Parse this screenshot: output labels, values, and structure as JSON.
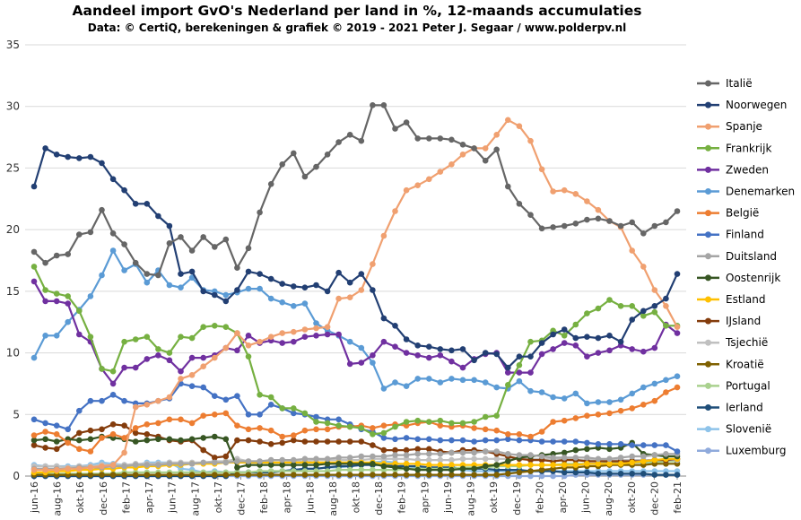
{
  "chart_data": {
    "type": "line",
    "title": "Aandeel import GvO's Nederland per land in %, 12-maands accumulaties",
    "subtitle": "Data: © CertiQ, berekeningen & grafiek © 2019 - 2021 Peter J. Segaar / www.polderpv.nl",
    "ylim": [
      0,
      35
    ],
    "yticks": [
      0,
      5,
      10,
      15,
      20,
      25,
      30,
      35
    ],
    "grid": "horizontal",
    "legend_position": "right",
    "x_tick_labels": [
      "jun-16",
      "aug-16",
      "okt-16",
      "dec-16",
      "feb-17",
      "apr-17",
      "jun-17",
      "aug-17",
      "okt-17",
      "dec-17",
      "feb-18",
      "apr-18",
      "jun-18",
      "aug-18",
      "okt-18",
      "dec-18",
      "feb-19",
      "apr-19",
      "jun-19",
      "aug-19",
      "okt-19",
      "dec-19",
      "feb-20",
      "apr-20",
      "jun-20",
      "aug-20",
      "okt-20",
      "dec-20",
      "feb-21"
    ],
    "series": [
      {
        "name": "Italië",
        "color": "#666666",
        "values": [
          18.2,
          17.3,
          17.9,
          18.0,
          19.6,
          19.8,
          21.6,
          19.7,
          18.8,
          17.3,
          16.4,
          16.3,
          18.9,
          19.4,
          18.3,
          19.4,
          18.6,
          19.2,
          16.9,
          18.5,
          21.4,
          23.7,
          25.3,
          26.2,
          24.3,
          25.1,
          26.1,
          27.1,
          27.7,
          27.2,
          30.1,
          30.1,
          28.2,
          28.7,
          27.4,
          27.4,
          27.4,
          27.3,
          26.9,
          26.6,
          25.6,
          26.5,
          23.5,
          22.1,
          21.2,
          20.1,
          20.2,
          20.3,
          20.5,
          20.8,
          20.9,
          20.7,
          20.3,
          20.6,
          19.7,
          20.3,
          20.6,
          21.5
        ]
      },
      {
        "name": "Noorwegen",
        "color": "#223f73",
        "values": [
          23.5,
          26.6,
          26.1,
          25.9,
          25.8,
          25.9,
          25.4,
          24.1,
          23.2,
          22.1,
          22.1,
          21.1,
          20.3,
          16.4,
          16.6,
          15.0,
          14.7,
          14.2,
          15.1,
          16.6,
          16.4,
          16.0,
          15.6,
          15.4,
          15.3,
          15.5,
          15.0,
          16.5,
          15.7,
          16.4,
          15.1,
          12.8,
          12.2,
          11.1,
          10.6,
          10.5,
          10.3,
          10.2,
          10.3,
          9.4,
          10.0,
          9.9,
          8.8,
          9.7,
          9.7,
          10.8,
          11.5,
          11.9,
          11.2,
          11.3,
          11.2,
          11.4,
          10.9,
          12.7,
          13.4,
          13.8,
          14.4,
          16.4
        ]
      },
      {
        "name": "Spanje",
        "color": "#f0a070",
        "values": [
          0.5,
          0.5,
          0.5,
          0.6,
          0.6,
          0.7,
          0.8,
          0.9,
          1.9,
          5.6,
          5.8,
          6.1,
          6.4,
          7.9,
          8.2,
          8.9,
          9.6,
          10.4,
          11.6,
          10.6,
          10.9,
          11.3,
          11.6,
          11.7,
          11.9,
          12.0,
          12.1,
          14.4,
          14.5,
          15.1,
          17.2,
          19.5,
          21.5,
          23.2,
          23.6,
          24.1,
          24.7,
          25.3,
          26.1,
          26.6,
          26.6,
          27.7,
          28.9,
          28.4,
          27.2,
          24.9,
          23.1,
          23.2,
          22.9,
          22.3,
          21.6,
          20.7,
          20.2,
          18.3,
          17.0,
          15.1,
          13.8,
          12.1
        ]
      },
      {
        "name": "Frankrijk",
        "color": "#76b041",
        "values": [
          17.0,
          15.1,
          14.8,
          14.6,
          13.4,
          11.3,
          8.7,
          8.5,
          10.9,
          11.1,
          11.3,
          10.3,
          10.0,
          11.3,
          11.2,
          12.1,
          12.2,
          12.1,
          11.6,
          9.7,
          6.6,
          6.4,
          5.5,
          5.5,
          5.1,
          4.4,
          4.3,
          4.1,
          4.0,
          3.9,
          3.4,
          3.5,
          4.0,
          4.4,
          4.5,
          4.4,
          4.5,
          4.3,
          4.3,
          4.4,
          4.8,
          4.9,
          7.4,
          9.0,
          10.9,
          11.0,
          11.8,
          11.4,
          12.3,
          13.2,
          13.6,
          14.3,
          13.8,
          13.8,
          13.0,
          13.3,
          12.2,
          12.2
        ]
      },
      {
        "name": "Zweden",
        "color": "#7030a0",
        "values": [
          15.8,
          14.2,
          14.2,
          14.0,
          11.5,
          10.9,
          8.7,
          7.5,
          8.8,
          8.8,
          9.5,
          9.8,
          9.4,
          8.5,
          9.6,
          9.6,
          9.8,
          10.4,
          10.2,
          11.4,
          10.8,
          11.0,
          10.8,
          10.9,
          11.3,
          11.4,
          11.5,
          11.5,
          9.1,
          9.2,
          9.8,
          10.9,
          10.5,
          10.0,
          9.8,
          9.6,
          9.8,
          9.3,
          8.8,
          9.5,
          9.9,
          10.0,
          8.4,
          8.4,
          8.4,
          9.9,
          10.3,
          10.8,
          10.6,
          9.7,
          10.0,
          10.2,
          10.6,
          10.3,
          10.1,
          10.4,
          12.3,
          11.6
        ]
      },
      {
        "name": "Denemarken",
        "color": "#5b9bd5",
        "values": [
          9.6,
          11.4,
          11.4,
          12.5,
          13.5,
          14.6,
          16.3,
          18.3,
          16.7,
          17.2,
          15.7,
          16.7,
          15.5,
          15.3,
          16.1,
          15.1,
          15.0,
          14.7,
          14.9,
          15.2,
          15.2,
          14.4,
          14.1,
          13.8,
          14.0,
          12.4,
          11.8,
          11.4,
          10.9,
          10.4,
          9.2,
          7.1,
          7.6,
          7.3,
          7.9,
          7.9,
          7.6,
          7.9,
          7.8,
          7.8,
          7.6,
          7.2,
          7.1,
          7.7,
          6.9,
          6.8,
          6.4,
          6.3,
          6.7,
          5.9,
          6.0,
          6.0,
          6.2,
          6.7,
          7.2,
          7.5,
          7.8,
          8.1
        ]
      },
      {
        "name": "België",
        "color": "#ed7d31",
        "values": [
          3.3,
          3.6,
          3.4,
          2.7,
          2.2,
          2.0,
          3.1,
          3.4,
          3.1,
          3.9,
          4.2,
          4.3,
          4.6,
          4.6,
          4.3,
          4.9,
          5.0,
          5.1,
          4.1,
          3.8,
          3.9,
          3.7,
          3.2,
          3.3,
          3.7,
          3.8,
          3.8,
          4.0,
          4.0,
          4.1,
          3.9,
          4.1,
          4.2,
          4.1,
          4.3,
          4.4,
          4.1,
          4.0,
          4.1,
          3.9,
          3.8,
          3.7,
          3.4,
          3.4,
          3.2,
          3.6,
          4.4,
          4.5,
          4.7,
          4.9,
          5.0,
          5.1,
          5.3,
          5.5,
          5.8,
          6.1,
          6.8,
          7.2
        ]
      },
      {
        "name": "Finland",
        "color": "#4472c4",
        "values": [
          4.6,
          4.3,
          4.1,
          3.8,
          5.3,
          6.1,
          6.1,
          6.6,
          6.1,
          5.9,
          5.9,
          6.1,
          6.3,
          7.5,
          7.3,
          7.2,
          6.5,
          6.2,
          6.5,
          5.0,
          5.0,
          5.8,
          5.5,
          5.1,
          5.0,
          4.8,
          4.6,
          4.6,
          4.2,
          3.8,
          3.6,
          3.1,
          3.0,
          3.1,
          3.0,
          3.0,
          2.9,
          2.9,
          2.9,
          2.8,
          2.9,
          2.9,
          3.0,
          2.9,
          2.9,
          2.8,
          2.8,
          2.8,
          2.8,
          2.7,
          2.6,
          2.6,
          2.6,
          2.5,
          2.5,
          2.5,
          2.5,
          2.0
        ]
      },
      {
        "name": "Duitsland",
        "color": "#a5a5a5",
        "values": [
          0.6,
          0.6,
          0.6,
          0.6,
          0.7,
          0.7,
          0.7,
          0.8,
          0.8,
          0.9,
          0.9,
          0.9,
          1.0,
          1.0,
          1.0,
          1.1,
          1.1,
          1.1,
          1.2,
          1.2,
          1.2,
          1.3,
          1.3,
          1.3,
          1.4,
          1.4,
          1.4,
          1.5,
          1.5,
          1.6,
          1.6,
          1.6,
          1.7,
          1.7,
          1.8,
          1.8,
          1.8,
          1.9,
          1.9,
          1.9,
          2.0,
          2.0,
          1.8,
          1.7,
          1.7,
          1.6,
          1.5,
          1.5,
          1.5,
          1.5,
          1.4,
          1.4,
          1.5,
          1.6,
          1.6,
          1.7,
          1.8,
          1.8
        ]
      },
      {
        "name": "Oostenrijk",
        "color": "#375623",
        "values": [
          2.9,
          3.0,
          2.8,
          3.0,
          2.9,
          3.0,
          3.2,
          3.1,
          3.0,
          2.8,
          2.9,
          3.0,
          3.0,
          2.9,
          3.0,
          3.1,
          3.2,
          3.0,
          0.7,
          0.9,
          0.9,
          0.9,
          0.9,
          0.9,
          0.9,
          0.9,
          1.0,
          1.0,
          1.0,
          1.0,
          1.0,
          0.8,
          0.7,
          0.6,
          0.5,
          0.5,
          0.5,
          0.5,
          0.6,
          0.6,
          0.8,
          0.9,
          1.2,
          1.5,
          1.6,
          1.7,
          1.8,
          1.9,
          2.1,
          2.2,
          2.3,
          2.2,
          2.3,
          2.7,
          1.8,
          1.7,
          1.6,
          1.6
        ]
      },
      {
        "name": "Estland",
        "color": "#ffc000",
        "values": [
          0.3,
          0.3,
          0.4,
          0.4,
          0.5,
          0.5,
          0.6,
          0.6,
          0.7,
          0.7,
          0.8,
          0.8,
          0.9,
          0.9,
          1.0,
          1.0,
          1.0,
          1.1,
          1.1,
          1.1,
          1.1,
          1.1,
          1.1,
          1.1,
          1.1,
          1.1,
          1.1,
          1.1,
          1.1,
          1.1,
          1.1,
          1.0,
          1.0,
          1.0,
          1.0,
          0.9,
          0.9,
          0.9,
          0.9,
          0.9,
          0.9,
          0.9,
          0.9,
          0.9,
          0.9,
          0.9,
          0.9,
          0.9,
          0.9,
          1.0,
          1.0,
          1.0,
          1.0,
          1.1,
          1.2,
          1.3,
          1.4,
          1.4
        ]
      },
      {
        "name": "IJsland",
        "color": "#843c0c",
        "values": [
          2.5,
          2.3,
          2.2,
          2.8,
          3.5,
          3.7,
          3.8,
          4.2,
          4.1,
          3.5,
          3.4,
          3.2,
          2.9,
          2.8,
          2.9,
          2.1,
          1.5,
          1.6,
          2.9,
          2.9,
          2.8,
          2.6,
          2.7,
          2.9,
          2.8,
          2.8,
          2.8,
          2.8,
          2.8,
          2.8,
          2.5,
          2.1,
          2.1,
          2.1,
          2.2,
          2.2,
          2.0,
          1.9,
          2.1,
          2.1,
          2.0,
          1.8,
          1.6,
          1.4,
          1.3,
          1.3,
          1.2,
          1.3,
          1.3,
          1.2,
          1.2,
          1.2,
          1.2,
          1.2,
          1.2,
          1.3,
          1.3,
          1.4
        ]
      },
      {
        "name": "Tsjechië",
        "color": "#c0c0c0",
        "values": [
          0.8,
          0.8,
          0.8,
          0.7,
          0.8,
          0.8,
          0.9,
          0.9,
          0.9,
          1.0,
          1.0,
          1.0,
          1.1,
          1.1,
          1.1,
          1.1,
          1.2,
          1.2,
          1.4,
          1.2,
          1.2,
          1.1,
          1.1,
          1.2,
          1.2,
          1.3,
          1.3,
          1.3,
          1.3,
          1.3,
          1.4,
          1.4,
          1.4,
          1.4,
          1.3,
          1.3,
          1.3,
          1.3,
          1.4,
          1.4,
          1.4,
          1.4,
          1.4,
          1.4,
          1.4,
          1.4,
          1.4,
          1.4,
          1.3,
          1.3,
          1.3,
          1.3,
          1.3,
          1.3,
          1.3,
          1.3,
          1.3,
          1.3
        ]
      },
      {
        "name": "Kroatië",
        "color": "#7f6000",
        "values": [
          0.1,
          0.1,
          0.1,
          0.1,
          0.1,
          0.1,
          0.1,
          0.1,
          0.1,
          0.1,
          0.1,
          0.1,
          0.1,
          0.1,
          0.1,
          0.1,
          0.1,
          0.1,
          0.1,
          0.1,
          0.1,
          0.1,
          0.1,
          0.1,
          0.1,
          0.1,
          0.1,
          0.1,
          0.1,
          0.1,
          0.1,
          0.1,
          0.1,
          0.1,
          0.1,
          0.1,
          0.1,
          0.1,
          0.1,
          0.1,
          0.1,
          0.1,
          0.2,
          0.3,
          0.4,
          0.5,
          0.6,
          0.7,
          0.7,
          0.8,
          0.8,
          0.9,
          0.9,
          0.9,
          0.9,
          1.0,
          1.0,
          1.0
        ]
      },
      {
        "name": "Portugal",
        "color": "#a9d18e",
        "values": [
          0.2,
          0.2,
          0.2,
          0.2,
          0.2,
          0.2,
          0.2,
          0.2,
          0.3,
          0.3,
          0.3,
          0.3,
          0.3,
          0.3,
          0.3,
          0.3,
          0.3,
          0.3,
          0.3,
          0.3,
          0.4,
          0.4,
          0.4,
          0.4,
          0.4,
          0.4,
          0.4,
          0.5,
          0.5,
          0.5,
          0.5,
          0.5,
          0.5,
          0.6,
          0.6,
          0.6,
          0.6,
          0.6,
          0.7,
          0.7,
          0.7,
          0.8,
          0.8,
          0.8,
          0.9,
          0.9,
          0.9,
          1.0,
          1.0,
          1.0,
          1.0,
          1.1,
          1.1,
          1.1,
          1.1,
          1.1,
          1.2,
          1.2
        ]
      },
      {
        "name": "Ierland",
        "color": "#1f4e79",
        "values": [
          0.0,
          0.0,
          0.0,
          0.0,
          0.0,
          0.0,
          0.0,
          0.0,
          0.0,
          0.0,
          0.0,
          0.0,
          0.0,
          0.0,
          0.0,
          0.0,
          0.0,
          0.0,
          0.3,
          0.3,
          0.3,
          0.3,
          0.4,
          0.5,
          0.6,
          0.6,
          0.7,
          0.8,
          0.8,
          0.9,
          0.9,
          0.9,
          0.8,
          0.8,
          0.8,
          0.7,
          0.7,
          0.7,
          0.6,
          0.6,
          0.6,
          0.5,
          0.5,
          0.5,
          0.4,
          0.4,
          0.4,
          0.3,
          0.3,
          0.3,
          0.2,
          0.2,
          0.2,
          0.2,
          0.2,
          0.1,
          0.1,
          0.1
        ]
      },
      {
        "name": "Slovenië",
        "color": "#8ec3ea",
        "values": [
          0.9,
          0.8,
          0.8,
          0.8,
          0.8,
          0.9,
          1.1,
          1.0,
          0.9,
          0.9,
          1.1,
          1.1,
          1.1,
          0.6,
          0.5,
          0.3,
          0.4,
          0.3,
          0.3,
          0.3,
          0.3,
          0.4,
          0.4,
          0.5,
          0.6,
          0.6,
          0.7,
          0.7,
          0.8,
          0.9,
          1.1,
          1.2,
          1.1,
          0.8,
          0.7,
          0.7,
          0.6,
          0.6,
          0.5,
          0.4,
          0.4,
          0.4,
          0.4,
          0.4,
          0.4,
          0.4,
          0.4,
          0.4,
          0.4,
          0.4,
          0.4,
          0.4,
          0.4,
          0.4,
          0.4,
          0.4,
          0.4,
          0.4
        ]
      },
      {
        "name": "Luxemburg",
        "color": "#8faadc",
        "values": [
          0.0,
          0.0,
          0.0,
          0.0,
          0.0,
          0.0,
          0.0,
          0.0,
          0.0,
          0.0,
          0.0,
          0.0,
          0.0,
          0.0,
          0.0,
          0.0,
          0.0,
          0.0,
          0.0,
          0.0,
          0.0,
          0.0,
          0.0,
          0.0,
          0.0,
          0.0,
          0.0,
          0.0,
          0.0,
          0.0,
          0.0,
          0.0,
          0.0,
          0.0,
          0.0,
          0.0,
          0.0,
          0.0,
          0.0,
          0.0,
          0.0,
          0.0,
          0.0,
          0.0,
          0.0,
          0.0,
          0.0,
          0.0,
          0.1,
          0.1,
          0.1,
          0.1,
          0.1,
          0.1,
          0.1,
          0.1,
          0.1,
          0.1
        ]
      }
    ]
  }
}
